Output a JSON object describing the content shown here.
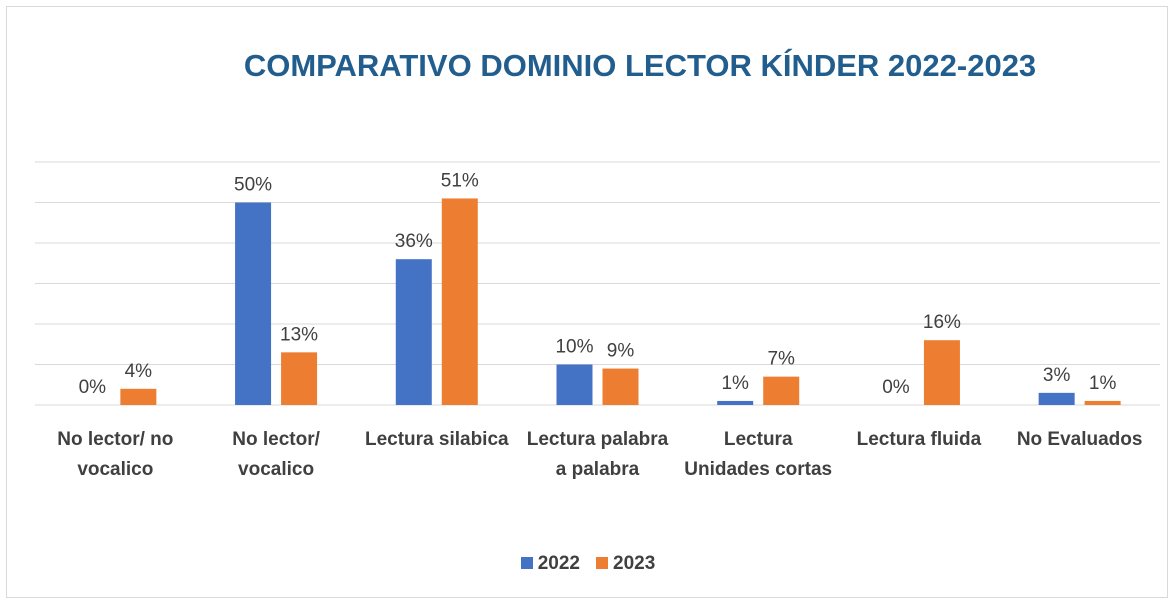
{
  "chart_data": {
    "type": "bar",
    "title": "COMPARATIVO DOMINIO LECTOR  KÍNDER 2022-2023",
    "categories": [
      "No lector/ no vocalico",
      "No lector/ vocalico",
      "Lectura silabica",
      "Lectura palabra a palabra",
      "Lectura Unidades cortas",
      "Lectura fluida",
      "No Evaluados"
    ],
    "series": [
      {
        "name": "2022",
        "color": "#4472c4",
        "values": [
          0,
          50,
          36,
          10,
          1,
          0,
          3
        ],
        "value_labels": [
          "0%",
          "50%",
          "36%",
          "10%",
          "1%",
          "0%",
          "3%"
        ]
      },
      {
        "name": "2023",
        "color": "#ed7d31",
        "values": [
          4,
          13,
          51,
          9,
          7,
          16,
          1
        ],
        "value_labels": [
          "4%",
          "13%",
          "51%",
          "9%",
          "7%",
          "16%",
          "1%"
        ]
      }
    ],
    "ylim": [
      0,
      60
    ],
    "yticks": [
      0,
      10,
      20,
      30,
      40,
      50,
      60
    ],
    "grid": true,
    "legend": "bottom"
  }
}
